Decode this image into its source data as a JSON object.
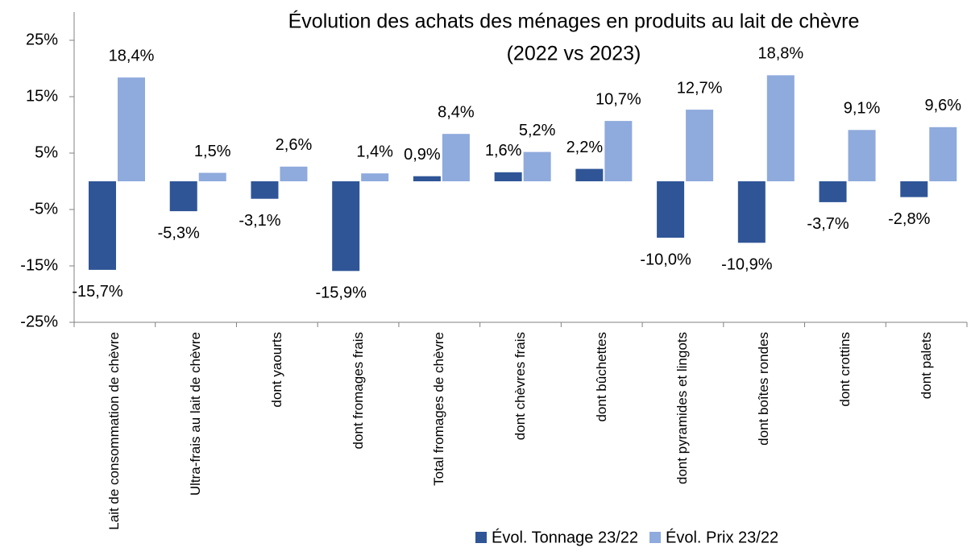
{
  "chart_data": {
    "type": "bar",
    "title": "Évolution des achats des ménages en produits au lait de chèvre",
    "subtitle": "(2022 vs 2023)",
    "categories": [
      "Lait de consommation de chèvre",
      "Ultra-frais au lait de chèvre",
      "dont yaourts",
      "dont fromages frais",
      "Total fromages de chèvre",
      "dont chèvres frais",
      "dont bûchettes",
      "dont pyramides et lingots",
      "dont boîtes rondes",
      "dont crottins",
      "dont palets"
    ],
    "series": [
      {
        "name": "Évol. Tonnage 23/22",
        "color": "#2f5597",
        "values": [
          -15.7,
          -5.3,
          -3.1,
          -15.9,
          0.9,
          1.6,
          2.2,
          -10.0,
          -10.9,
          -3.7,
          -2.8
        ],
        "value_labels": [
          "-15,7%",
          "-5,3%",
          "-3,1%",
          "-15,9%",
          "0,9%",
          "1,6%",
          "2,2%",
          "-10,0%",
          "-10,9%",
          "-3,7%",
          "-2,8%"
        ]
      },
      {
        "name": "Évol. Prix 23/22",
        "color": "#8faadc",
        "values": [
          18.4,
          1.5,
          2.6,
          1.4,
          8.4,
          5.2,
          10.7,
          12.7,
          18.8,
          9.1,
          9.6
        ],
        "value_labels": [
          "18,4%",
          "1,5%",
          "2,6%",
          "1,4%",
          "8,4%",
          "5,2%",
          "10,7%",
          "12,7%",
          "18,8%",
          "9,1%",
          "9,6%"
        ]
      }
    ],
    "ylim": [
      -25,
      30
    ],
    "yticks": [
      {
        "value": -25,
        "label": "-25%"
      },
      {
        "value": -15,
        "label": "-15%"
      },
      {
        "value": -5,
        "label": "-5%"
      },
      {
        "value": 5,
        "label": "5%"
      },
      {
        "value": 15,
        "label": "15%"
      },
      {
        "value": 25,
        "label": "25%"
      }
    ]
  }
}
